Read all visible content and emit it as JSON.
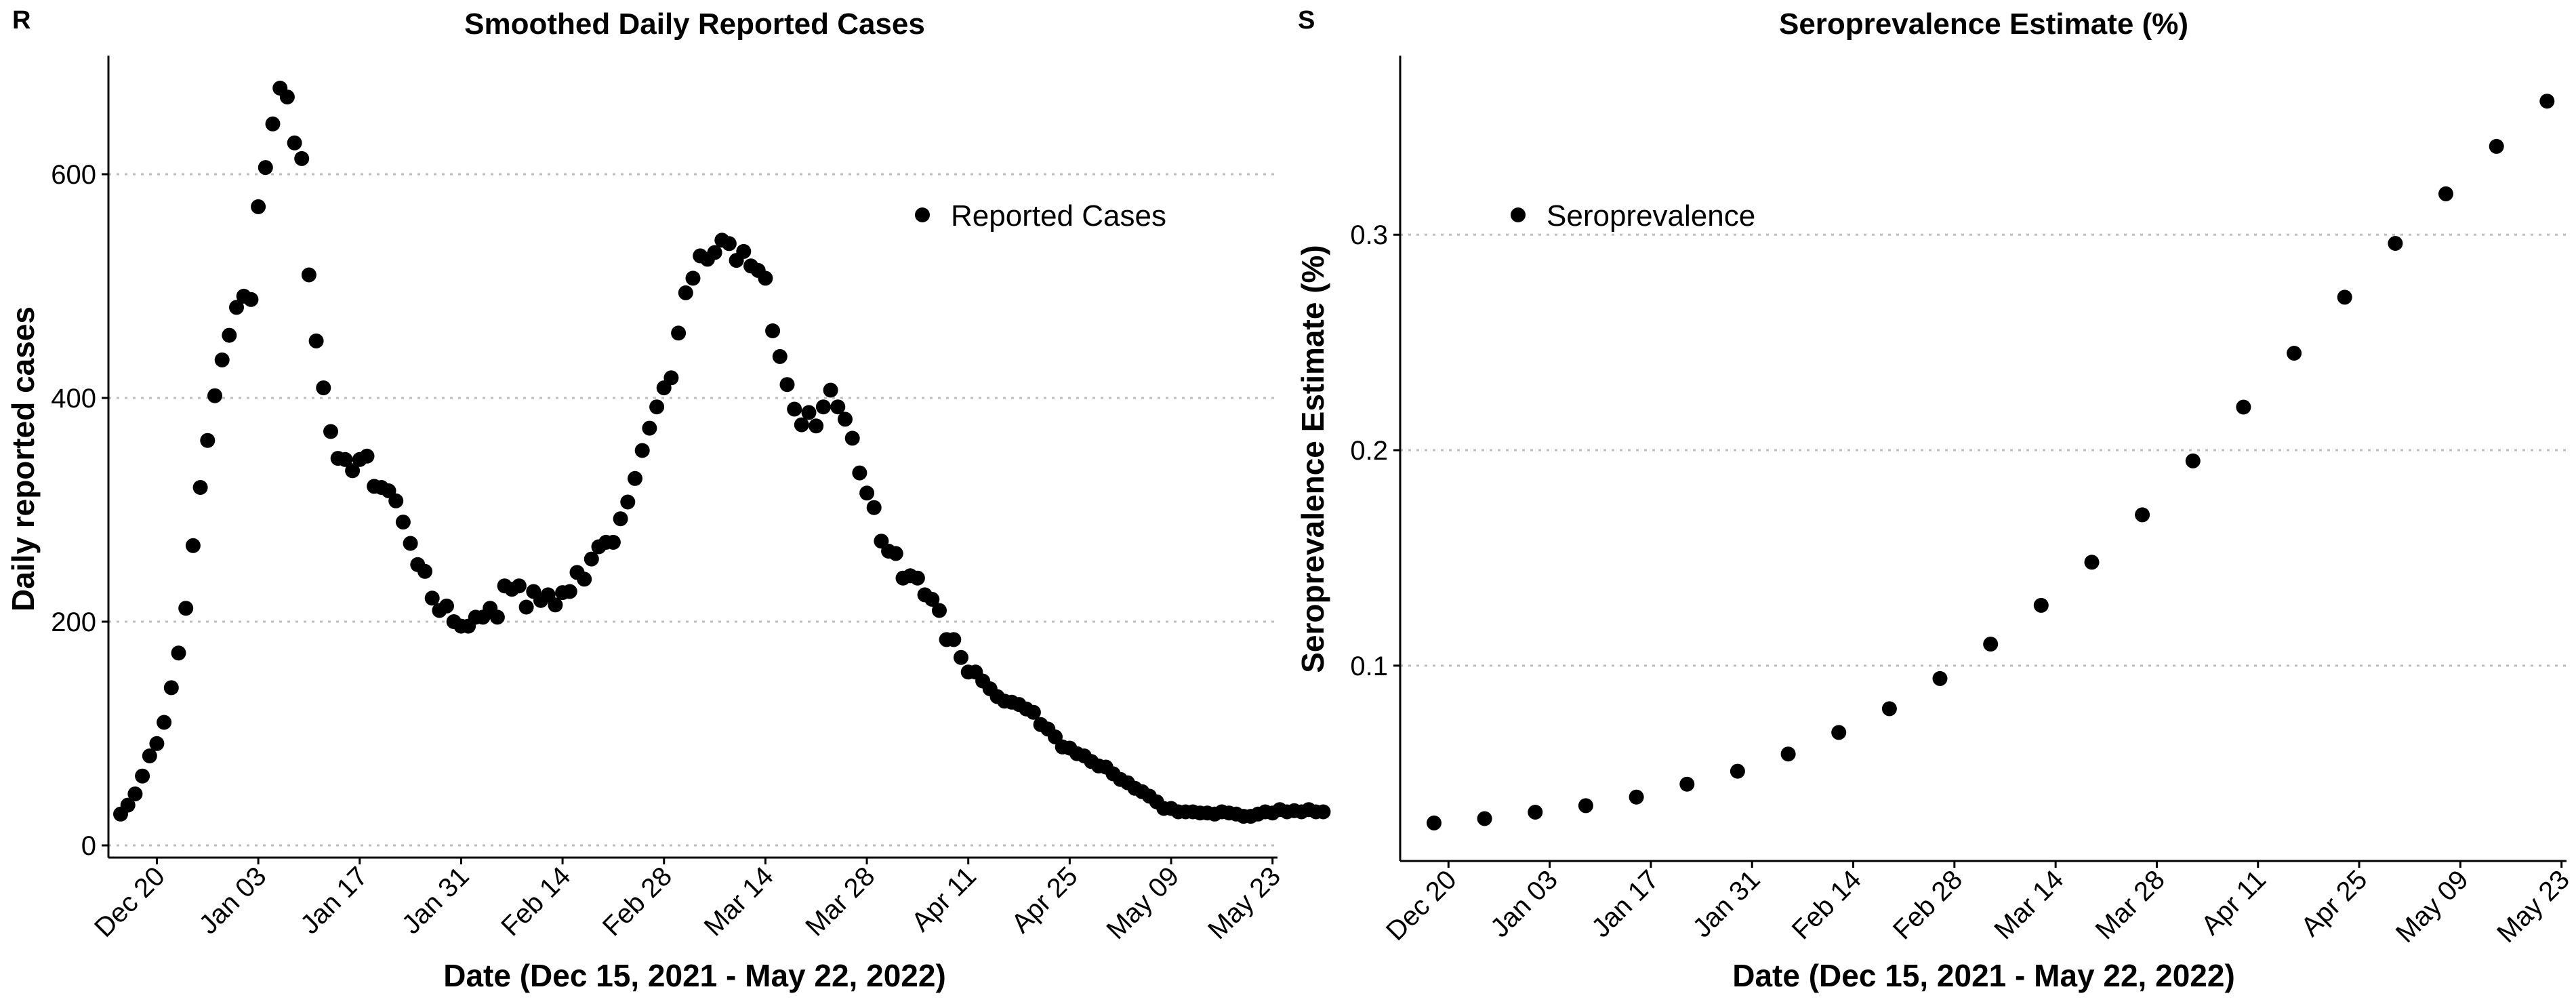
{
  "chart_data": [
    {
      "type": "scatter",
      "panel": "R",
      "title": "Smoothed Daily Reported Cases",
      "xlabel": "Date (Dec 15, 2021 - May 22, 2022)",
      "ylabel": "Daily reported cases",
      "ylim": [
        0,
        700
      ],
      "yticks": [
        0,
        200,
        400,
        600
      ],
      "xticks": [
        "Dec 20",
        "Jan 03",
        "Jan 17",
        "Jan 31",
        "Feb 14",
        "Feb 28",
        "Mar 14",
        "Mar 28",
        "Apr 11",
        "Apr 25",
        "May 09",
        "May 23"
      ],
      "xlim": [
        "2021-12-15",
        "2022-05-22"
      ],
      "grid": "horizontal dotted",
      "legend": "top-right",
      "series": [
        {
          "name": "Reported Cases",
          "x_start": "2021-12-15",
          "x_step_days": 1,
          "values": [
            28,
            36,
            46,
            62,
            80,
            91,
            110,
            141,
            172,
            212,
            268,
            320,
            362,
            402,
            434,
            456,
            481,
            491,
            488,
            571,
            606,
            645,
            677,
            669,
            628,
            614,
            510,
            451,
            409,
            370,
            346,
            345,
            335,
            345,
            348,
            321,
            320,
            317,
            308,
            289,
            270,
            251,
            245,
            221,
            210,
            214,
            200,
            196,
            196,
            204,
            204,
            212,
            204,
            232,
            229,
            232,
            213,
            227,
            219,
            224,
            215,
            226,
            227,
            244,
            238,
            256,
            267,
            271,
            271,
            292,
            307,
            328,
            353,
            373,
            392,
            409,
            418,
            458,
            494,
            507,
            527,
            524,
            530,
            541,
            538,
            523,
            531,
            518,
            514,
            507,
            460,
            437,
            412,
            390,
            376,
            387,
            375,
            392,
            407,
            392,
            381,
            364,
            333,
            315,
            302,
            272,
            263,
            261,
            239,
            241,
            239,
            224,
            220,
            210,
            184,
            184,
            168,
            155,
            155,
            147,
            140,
            133,
            129,
            128,
            126,
            122,
            119,
            108,
            104,
            97,
            88,
            87,
            82,
            80,
            75,
            71,
            70,
            64,
            59,
            56,
            51,
            48,
            44,
            39,
            33,
            33,
            30,
            30,
            30,
            29,
            29,
            28,
            30,
            29,
            28,
            26,
            26,
            28,
            30,
            29,
            32,
            30,
            31,
            30,
            32,
            30,
            30
          ]
        }
      ]
    },
    {
      "type": "scatter",
      "panel": "S",
      "title": "Seroprevalence Estimate (%)",
      "xlabel": "Date (Dec 15, 2021 - May 22, 2022)",
      "ylabel": "Seroprevalence Estimate (%)",
      "ylim": [
        0.015,
        0.38
      ],
      "yticks": [
        0.1,
        0.2,
        0.3
      ],
      "ytick_labels": [
        "0.1",
        "0.2",
        "0.3"
      ],
      "xticks": [
        "Dec 20",
        "Jan 03",
        "Jan 17",
        "Jan 31",
        "Feb 14",
        "Feb 28",
        "Mar 14",
        "Mar 28",
        "Apr 11",
        "Apr 25",
        "May 09",
        "May 23"
      ],
      "xlim": [
        "2021-12-15",
        "2022-05-22"
      ],
      "grid": "horizontal dotted",
      "legend": "top-left",
      "series": [
        {
          "name": "Seroprevalence",
          "x": [
            "2021-12-18",
            "2021-12-25",
            "2022-01-01",
            "2022-01-08",
            "2022-01-15",
            "2022-01-22",
            "2022-01-29",
            "2022-02-05",
            "2022-02-12",
            "2022-02-19",
            "2022-02-26",
            "2022-03-05",
            "2022-03-12",
            "2022-03-19",
            "2022-03-26",
            "2022-04-02",
            "2022-04-09",
            "2022-04-16",
            "2022-04-23",
            "2022-04-30",
            "2022-05-07",
            "2022-05-14",
            "2022-05-21"
          ],
          "values": [
            0.027,
            0.029,
            0.032,
            0.035,
            0.039,
            0.045,
            0.051,
            0.059,
            0.069,
            0.08,
            0.094,
            0.11,
            0.128,
            0.148,
            0.17,
            0.195,
            0.22,
            0.245,
            0.271,
            0.296,
            0.319,
            0.341,
            0.362
          ]
        }
      ]
    }
  ]
}
